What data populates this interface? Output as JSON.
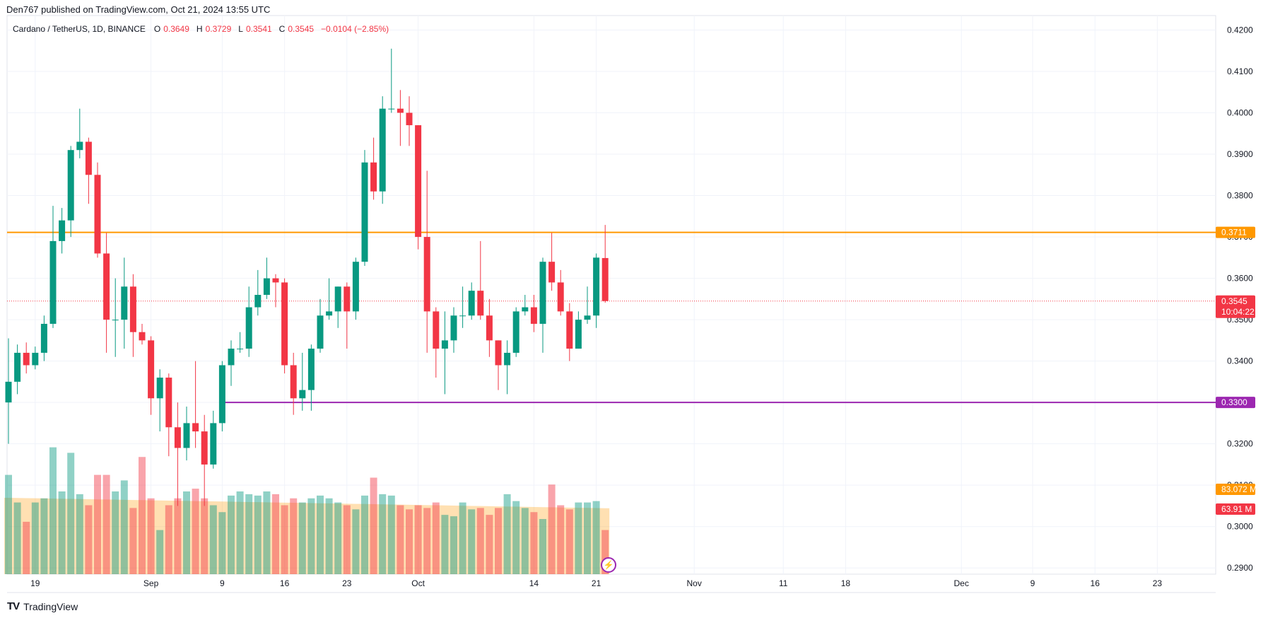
{
  "header": {
    "published": "Den767 published on TradingView.com, Oct 21, 2024 13:55 UTC"
  },
  "legend": {
    "symbol": "Cardano / TetherUS, 1D, BINANCE",
    "o_label": "O",
    "o_value": "0.3649",
    "h_label": "H",
    "h_value": "0.3729",
    "l_label": "L",
    "l_value": "0.3541",
    "c_label": "C",
    "c_value": "0.3545",
    "change": "−0.0104 (−2.85%)"
  },
  "footer": {
    "brand": "TradingView"
  },
  "colors": {
    "up": "#089981",
    "down": "#f23645",
    "resistance": "#ff9800",
    "support": "#9c27b0",
    "vol_up": "rgba(8,153,129,0.45)",
    "vol_down": "rgba(242,54,69,0.45)",
    "ma_fill": "rgba(255,152,0,0.3)"
  },
  "chart_data": {
    "type": "candlestick",
    "ylim": [
      0.2885,
      0.4235
    ],
    "y_ticks": [
      "0.4200",
      "0.4100",
      "0.4000",
      "0.3900",
      "0.3800",
      "0.3700",
      "0.3600",
      "0.3500",
      "0.3400",
      "0.3300",
      "0.3200",
      "0.3100",
      "0.3000",
      "0.2900"
    ],
    "x_ticks": [
      {
        "label": "19",
        "index": 3
      },
      {
        "label": "Sep",
        "index": 16
      },
      {
        "label": "9",
        "index": 24
      },
      {
        "label": "16",
        "index": 31
      },
      {
        "label": "23",
        "index": 38
      },
      {
        "label": "Oct",
        "index": 46
      },
      {
        "label": "14",
        "index": 59
      },
      {
        "label": "21",
        "index": 66
      },
      {
        "label": "Nov",
        "index": 77
      },
      {
        "label": "11",
        "index": 87
      },
      {
        "label": "18",
        "index": 94
      },
      {
        "label": "Dec",
        "index": 107
      },
      {
        "label": "9",
        "index": 115
      },
      {
        "label": "16",
        "index": 122
      },
      {
        "label": "23",
        "index": 129
      }
    ],
    "horizontal_lines": [
      {
        "name": "resistance",
        "value": 0.3711,
        "label": "0.3711",
        "start_index": 0
      },
      {
        "name": "support",
        "value": 0.33,
        "label": "0.3300",
        "start_index": 24
      }
    ],
    "last_price": {
      "value": 0.3545,
      "label": "0.3545",
      "countdown": "10:04:22"
    },
    "volume_labels": {
      "ma_label": "83.072 M",
      "vol_label": "63.91 M"
    },
    "candles": [
      [
        0.33,
        0.335,
        0.32,
        0.3455
      ],
      [
        0.335,
        0.342,
        0.332,
        0.344
      ],
      [
        0.342,
        0.339,
        0.337,
        0.3445
      ],
      [
        0.339,
        0.342,
        0.338,
        0.3435
      ],
      [
        0.342,
        0.349,
        0.34,
        0.351
      ],
      [
        0.349,
        0.369,
        0.348,
        0.3775
      ],
      [
        0.369,
        0.374,
        0.366,
        0.377
      ],
      [
        0.374,
        0.391,
        0.37,
        0.392
      ],
      [
        0.391,
        0.393,
        0.389,
        0.401
      ],
      [
        0.393,
        0.385,
        0.378,
        0.394
      ],
      [
        0.385,
        0.366,
        0.365,
        0.388
      ],
      [
        0.366,
        0.35,
        0.342,
        0.371
      ],
      [
        0.35,
        0.35,
        0.341,
        0.36
      ],
      [
        0.35,
        0.358,
        0.343,
        0.365
      ],
      [
        0.358,
        0.347,
        0.341,
        0.361
      ],
      [
        0.347,
        0.345,
        0.344,
        0.349
      ],
      [
        0.345,
        0.331,
        0.327,
        0.346
      ],
      [
        0.331,
        0.336,
        0.323,
        0.338
      ],
      [
        0.336,
        0.324,
        0.317,
        0.337
      ],
      [
        0.324,
        0.319,
        0.305,
        0.33
      ],
      [
        0.319,
        0.325,
        0.316,
        0.329
      ],
      [
        0.325,
        0.323,
        0.319,
        0.34
      ],
      [
        0.323,
        0.315,
        0.305,
        0.327
      ],
      [
        0.315,
        0.325,
        0.314,
        0.328
      ],
      [
        0.325,
        0.339,
        0.323,
        0.34
      ],
      [
        0.339,
        0.343,
        0.334,
        0.345
      ],
      [
        0.343,
        0.343,
        0.342,
        0.347
      ],
      [
        0.343,
        0.353,
        0.341,
        0.358
      ],
      [
        0.353,
        0.356,
        0.351,
        0.362
      ],
      [
        0.356,
        0.36,
        0.355,
        0.365
      ],
      [
        0.36,
        0.359,
        0.353,
        0.361
      ],
      [
        0.359,
        0.339,
        0.337,
        0.36
      ],
      [
        0.339,
        0.331,
        0.327,
        0.342
      ],
      [
        0.331,
        0.333,
        0.328,
        0.342
      ],
      [
        0.333,
        0.343,
        0.328,
        0.344
      ],
      [
        0.343,
        0.351,
        0.342,
        0.355
      ],
      [
        0.351,
        0.352,
        0.35,
        0.36
      ],
      [
        0.352,
        0.358,
        0.348,
        0.358
      ],
      [
        0.358,
        0.352,
        0.343,
        0.359
      ],
      [
        0.352,
        0.364,
        0.35,
        0.365
      ],
      [
        0.364,
        0.388,
        0.363,
        0.391
      ],
      [
        0.388,
        0.381,
        0.379,
        0.394
      ],
      [
        0.381,
        0.401,
        0.378,
        0.404
      ],
      [
        0.401,
        0.401,
        0.4,
        0.4155
      ],
      [
        0.401,
        0.4,
        0.392,
        0.4055
      ],
      [
        0.4,
        0.397,
        0.392,
        0.404
      ],
      [
        0.397,
        0.37,
        0.367,
        0.397
      ],
      [
        0.37,
        0.352,
        0.342,
        0.386
      ],
      [
        0.352,
        0.343,
        0.336,
        0.353
      ],
      [
        0.343,
        0.345,
        0.332,
        0.352
      ],
      [
        0.345,
        0.351,
        0.342,
        0.353
      ],
      [
        0.351,
        0.351,
        0.348,
        0.358
      ],
      [
        0.351,
        0.357,
        0.35,
        0.359
      ],
      [
        0.357,
        0.351,
        0.35,
        0.369
      ],
      [
        0.351,
        0.345,
        0.341,
        0.355
      ],
      [
        0.345,
        0.339,
        0.333,
        0.345
      ],
      [
        0.339,
        0.342,
        0.332,
        0.345
      ],
      [
        0.342,
        0.352,
        0.341,
        0.353
      ],
      [
        0.352,
        0.353,
        0.351,
        0.356
      ],
      [
        0.353,
        0.349,
        0.347,
        0.356
      ],
      [
        0.349,
        0.364,
        0.342,
        0.365
      ],
      [
        0.364,
        0.359,
        0.357,
        0.371
      ],
      [
        0.359,
        0.352,
        0.351,
        0.362
      ],
      [
        0.352,
        0.343,
        0.34,
        0.354
      ],
      [
        0.343,
        0.35,
        0.343,
        0.352
      ],
      [
        0.35,
        0.351,
        0.349,
        0.358
      ],
      [
        0.351,
        0.365,
        0.348,
        0.366
      ],
      [
        0.3649,
        0.3545,
        0.3541,
        0.3729
      ]
    ],
    "volumes": [
      72,
      52,
      38,
      52,
      55,
      92,
      60,
      88,
      58,
      50,
      72,
      72,
      60,
      68,
      48,
      85,
      55,
      32,
      50,
      55,
      60,
      62,
      55,
      50,
      45,
      57,
      60,
      58,
      57,
      60,
      58,
      50,
      55,
      52,
      55,
      57,
      55,
      52,
      50,
      47,
      57,
      70,
      58,
      57,
      50,
      47,
      50,
      48,
      52,
      43,
      42,
      52,
      47,
      48,
      43,
      48,
      58,
      53,
      48,
      45,
      40,
      65,
      50,
      47,
      52,
      52,
      53,
      32
    ]
  }
}
